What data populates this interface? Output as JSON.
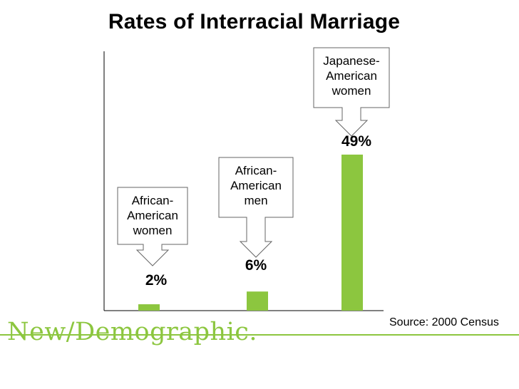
{
  "title": "Rates of Interracial Marriage",
  "source": "Source: 2000 Census",
  "brand": "New/Demographic.",
  "colors": {
    "bar": "#8cc63f",
    "axis": "#000000",
    "callout_border": "#666666",
    "brand": "#8cc63f"
  },
  "chart_data": {
    "type": "bar",
    "title": "Rates of Interracial Marriage",
    "categories": [
      "African-American women",
      "African-American men",
      "Japanese-American women"
    ],
    "values": [
      2,
      6,
      49
    ],
    "value_labels": [
      "2%",
      "6%",
      "49%"
    ],
    "callouts": [
      [
        "African-",
        "American",
        "women"
      ],
      [
        "African-",
        "American",
        "men"
      ],
      [
        "Japanese-",
        "American",
        "women"
      ]
    ],
    "ylim": [
      0,
      60
    ],
    "grid": false,
    "xlabel": "",
    "ylabel": ""
  }
}
